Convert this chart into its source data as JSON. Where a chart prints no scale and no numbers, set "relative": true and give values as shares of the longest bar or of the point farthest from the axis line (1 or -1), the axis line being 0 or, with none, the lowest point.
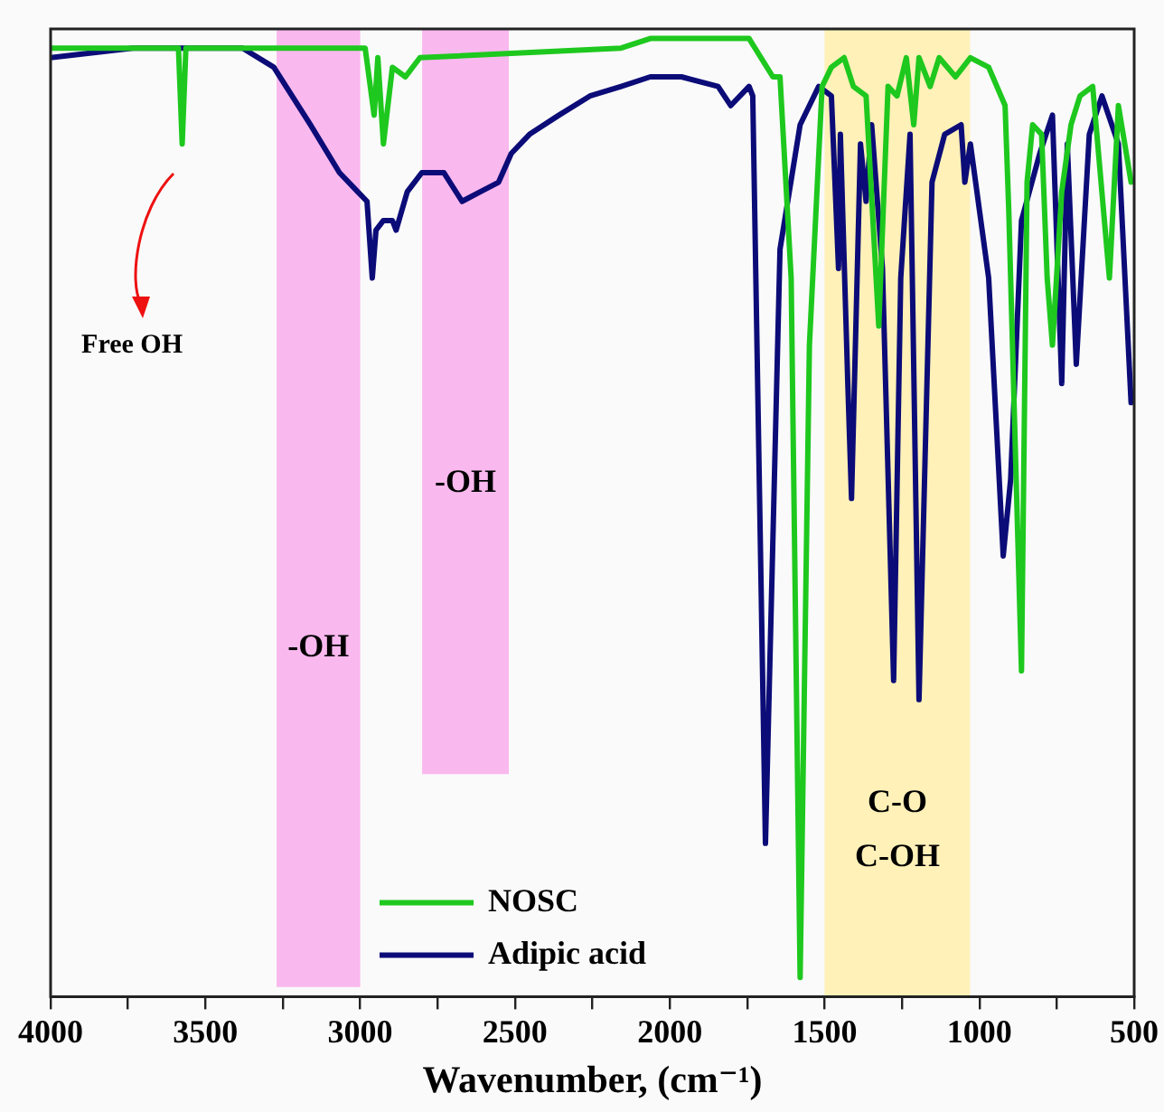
{
  "chart_data": {
    "type": "line",
    "relative": true,
    "xlabel": "Wavenumber, (cm⁻¹)",
    "xlim": [
      4000,
      500
    ],
    "xticks": [
      4000,
      {
        "value": 3750,
        "label": null
      },
      3500,
      {
        "value": 3250,
        "label": null
      },
      3000,
      {
        "value": 2750,
        "label": null
      },
      2500,
      {
        "value": 2250,
        "label": null
      },
      2000,
      {
        "value": 1750,
        "label": null
      },
      1500,
      {
        "value": 1250,
        "label": null
      },
      1000,
      {
        "value": 750,
        "label": null
      },
      500
    ],
    "grid": false,
    "legend": "bottom",
    "marker": "none",
    "line_style": "solid",
    "tick_labels": "x",
    "bands": [
      {
        "axis": "x",
        "from": 3270,
        "to": 3000,
        "label": "-OH",
        "color": "#f9b8ee"
      },
      {
        "axis": "x",
        "from": 2800,
        "to": 2520,
        "label": "-OH",
        "color": "#f9b8ee"
      },
      {
        "axis": "x",
        "from": 1500,
        "to": 1030,
        "label": "C-O\nC-OH",
        "color": "#fff1b8"
      }
    ],
    "annotations": [
      "Free OH"
    ],
    "series": [
      {
        "name": "NOSC",
        "color": "#1ec81e",
        "x": [
          4000,
          3616,
          3587,
          3575,
          3563,
          2984,
          2955,
          2943,
          2925,
          2896,
          2854,
          2807,
          2157,
          2063,
          1862,
          1744,
          1667,
          1644,
          1608,
          1579,
          1549,
          1508,
          1478,
          1437,
          1407,
          1366,
          1325,
          1295,
          1266,
          1236,
          1212,
          1195,
          1159,
          1130,
          1077,
          1029,
          970,
          917,
          905,
          888,
          864,
          846,
          828,
          799,
          781,
          764,
          734,
          704,
          675,
          634,
          580,
          551,
          510
        ],
        "values": [
          0.99,
          0.99,
          0.99,
          0.89,
          0.99,
          0.99,
          0.92,
          0.98,
          0.89,
          0.97,
          0.96,
          0.98,
          0.99,
          1.0,
          1.0,
          1.0,
          0.96,
          0.96,
          0.75,
          0.02,
          0.68,
          0.95,
          0.97,
          0.98,
          0.95,
          0.94,
          0.7,
          0.95,
          0.94,
          0.98,
          0.91,
          0.98,
          0.95,
          0.98,
          0.96,
          0.98,
          0.97,
          0.93,
          0.82,
          0.62,
          0.34,
          0.85,
          0.91,
          0.9,
          0.75,
          0.68,
          0.84,
          0.91,
          0.94,
          0.95,
          0.75,
          0.93,
          0.85
        ]
      },
      {
        "name": "Adipic acid",
        "color": "#0c0c78",
        "x": [
          4000,
          3734,
          3380,
          3279,
          3161,
          3067,
          3008,
          2978,
          2961,
          2949,
          2925,
          2896,
          2884,
          2848,
          2801,
          2730,
          2671,
          2612,
          2553,
          2512,
          2453,
          2358,
          2258,
          2157,
          2063,
          1962,
          1844,
          1803,
          1744,
          1732,
          1691,
          1644,
          1579,
          1519,
          1478,
          1455,
          1449,
          1425,
          1413,
          1384,
          1366,
          1348,
          1313,
          1277,
          1254,
          1224,
          1195,
          1153,
          1112,
          1059,
          1047,
          1029,
          970,
          923,
          899,
          864,
          805,
          764,
          734,
          716,
          687,
          645,
          604,
          551,
          510
        ],
        "values": [
          0.98,
          0.99,
          0.99,
          0.97,
          0.91,
          0.86,
          0.84,
          0.83,
          0.75,
          0.8,
          0.81,
          0.81,
          0.8,
          0.84,
          0.86,
          0.86,
          0.83,
          0.84,
          0.85,
          0.88,
          0.9,
          0.92,
          0.94,
          0.95,
          0.96,
          0.96,
          0.95,
          0.93,
          0.95,
          0.94,
          0.16,
          0.78,
          0.91,
          0.95,
          0.94,
          0.76,
          0.9,
          0.64,
          0.52,
          0.89,
          0.83,
          0.91,
          0.76,
          0.33,
          0.75,
          0.9,
          0.31,
          0.85,
          0.9,
          0.91,
          0.85,
          0.89,
          0.75,
          0.46,
          0.54,
          0.81,
          0.88,
          0.92,
          0.64,
          0.89,
          0.66,
          0.9,
          0.94,
          0.89,
          0.62
        ]
      }
    ]
  }
}
